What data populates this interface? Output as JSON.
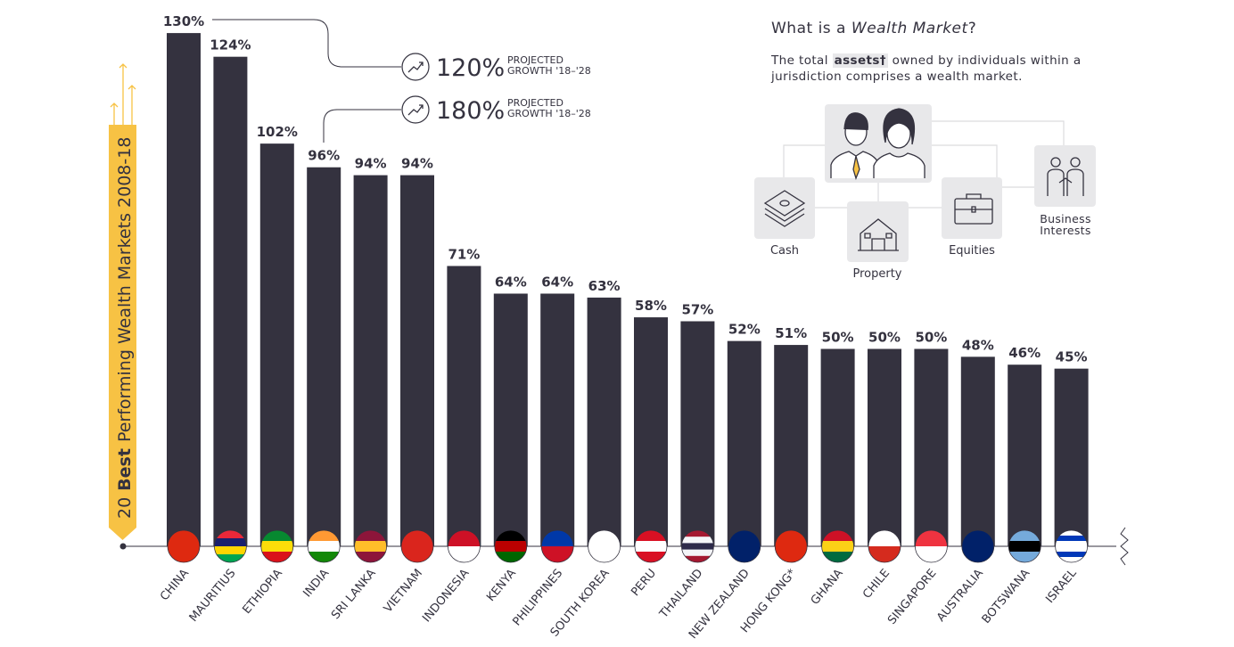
{
  "chart_data": {
    "type": "bar",
    "title_parts": [
      "20",
      "Best",
      "Performing Wealth Markets 2008-18"
    ],
    "categories": [
      "CHINA",
      "MAURITIUS",
      "ETHIOPIA",
      "INDIA",
      "SRI LANKA",
      "VIETNAM",
      "INDONESIA",
      "KENYA",
      "PHILIPPINES",
      "SOUTH KOREA",
      "PERU",
      "THAILAND",
      "NEW ZEALAND",
      "HONG KONG*",
      "GHANA",
      "CHILE",
      "SINGAPORE",
      "AUSTRALIA",
      "BOTSWANA",
      "ISRAEL"
    ],
    "values": [
      130,
      124,
      102,
      96,
      94,
      94,
      71,
      64,
      64,
      63,
      58,
      57,
      52,
      51,
      50,
      50,
      50,
      48,
      46,
      45
    ],
    "value_labels": [
      "130%",
      "124%",
      "102%",
      "96%",
      "94%",
      "94%",
      "71%",
      "64%",
      "64%",
      "63%",
      "58%",
      "57%",
      "52%",
      "51%",
      "50%",
      "50%",
      "50%",
      "48%",
      "46%",
      "45%"
    ],
    "color": "#34323f",
    "annotations": [
      {
        "value": "120%",
        "lines": [
          "PROJECTED",
          "GROWTH '18–'28"
        ]
      },
      {
        "value": "180%",
        "lines": [
          "PROJECTED",
          "GROWTH '18–'28"
        ]
      }
    ]
  },
  "sidebar": {
    "heading": [
      "What is a",
      "Wealth Market",
      "?"
    ],
    "description": [
      "The total",
      "assets†",
      "owned by individuals within a jurisdiction comprises a wealth market."
    ],
    "items": [
      "Cash",
      "Property",
      "Equities",
      "Business Interests"
    ]
  }
}
